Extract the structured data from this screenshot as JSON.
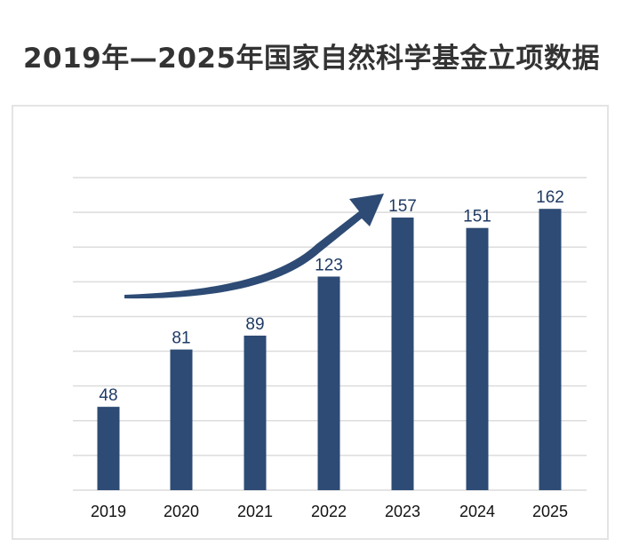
{
  "title": "2019年—2025年国家自然科学基金立项数据",
  "colors": {
    "bar": "#2d4b74",
    "arrow": "#2d4b74",
    "grid": "#dcdcdc",
    "label": "#1f3a64",
    "tick": "#111111"
  },
  "chart_data": {
    "type": "bar",
    "title": "2019年—2025年国家自然科学基金立项数据",
    "categories": [
      "2019",
      "2020",
      "2021",
      "2022",
      "2023",
      "2024",
      "2025"
    ],
    "values": [
      48,
      81,
      89,
      123,
      157,
      151,
      162
    ],
    "data_labels": [
      "48",
      "81",
      "89",
      "123",
      "157",
      "151",
      "162"
    ],
    "xlabel": "",
    "ylabel": "",
    "ylim": [
      0,
      180
    ],
    "grid": true,
    "legend": "none",
    "annotations": [
      "upward-trend-arrow"
    ]
  }
}
